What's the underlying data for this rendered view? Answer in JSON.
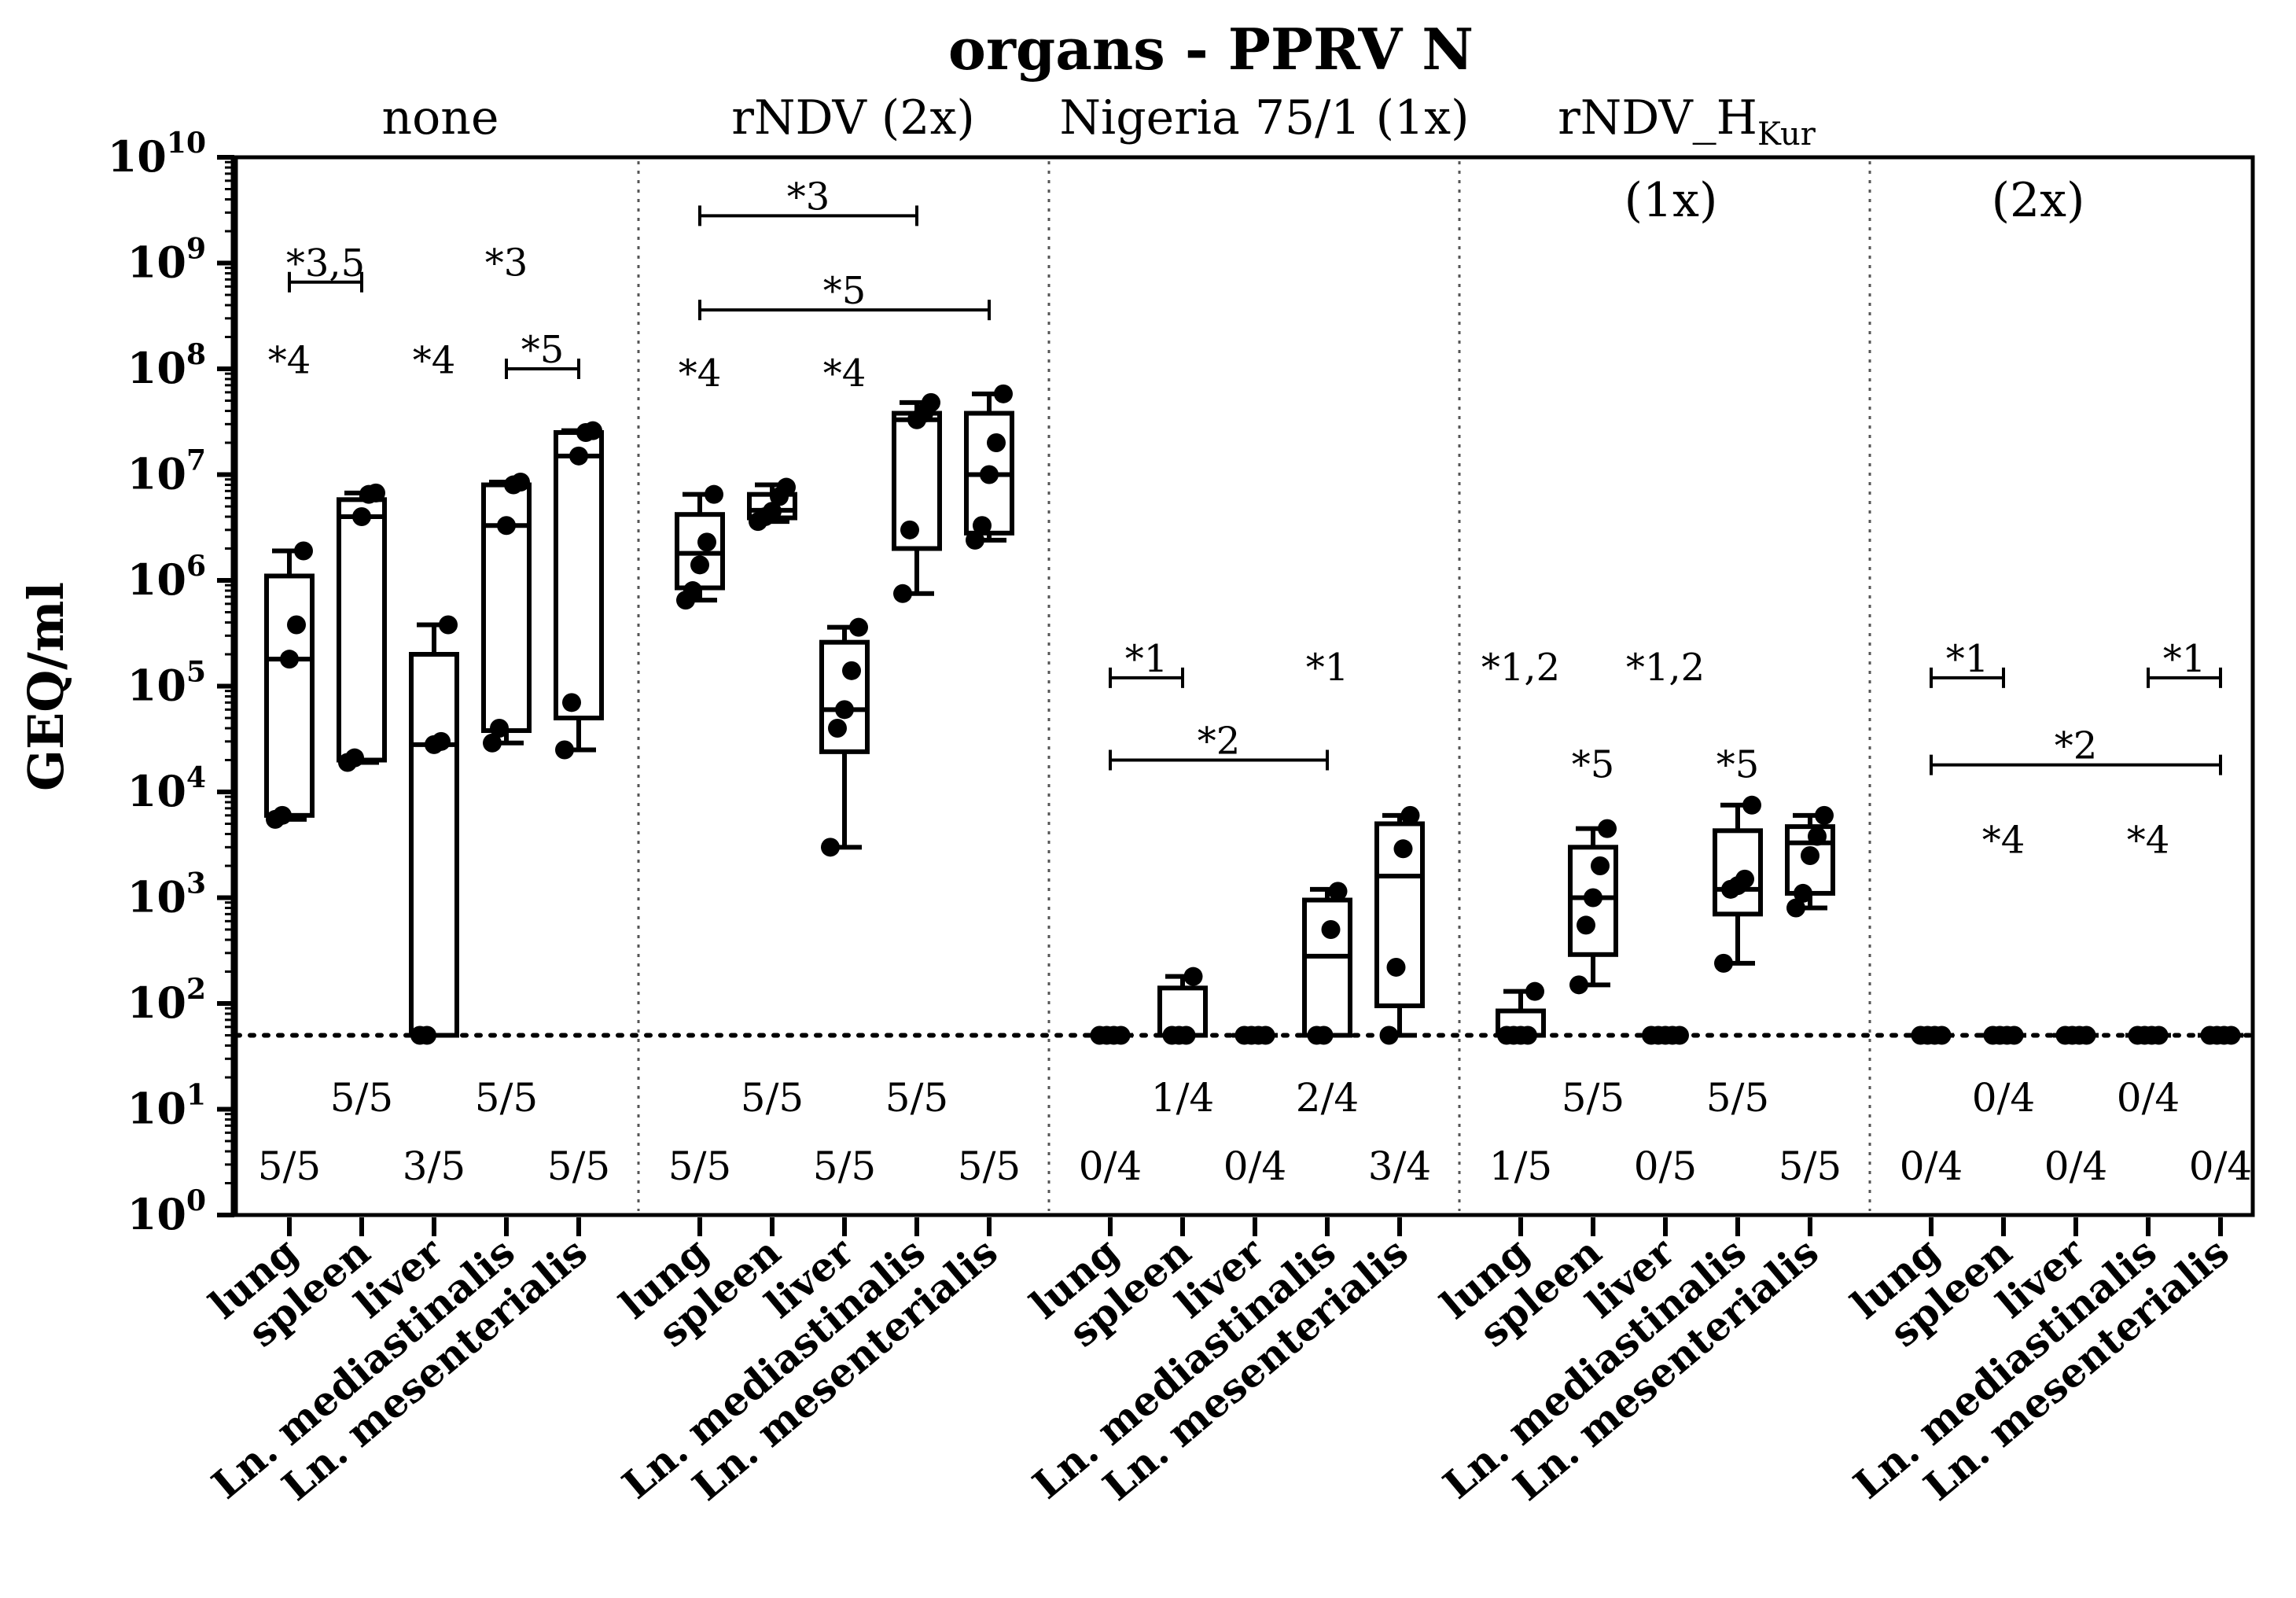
{
  "chart_data": {
    "type": "box",
    "title": "organs - PPRV N",
    "ylabel": "GEQ/ml",
    "yscale": "log10",
    "ylim": [
      1,
      10000000000
    ],
    "yticks": [
      {
        "exp": 0,
        "label_base": "10",
        "label_exp": "0"
      },
      {
        "exp": 1,
        "label_base": "10",
        "label_exp": "1"
      },
      {
        "exp": 2,
        "label_base": "10",
        "label_exp": "2"
      },
      {
        "exp": 3,
        "label_base": "10",
        "label_exp": "3"
      },
      {
        "exp": 4,
        "label_base": "10",
        "label_exp": "4"
      },
      {
        "exp": 5,
        "label_base": "10",
        "label_exp": "5"
      },
      {
        "exp": 6,
        "label_base": "10",
        "label_exp": "6"
      },
      {
        "exp": 7,
        "label_base": "10",
        "label_exp": "7"
      },
      {
        "exp": 8,
        "label_base": "10",
        "label_exp": "8"
      },
      {
        "exp": 9,
        "label_base": "10",
        "label_exp": "9"
      },
      {
        "exp": 10,
        "label_base": "10",
        "label_exp": "10"
      }
    ],
    "detection_limit": 50,
    "categories": [
      "lung",
      "spleen",
      "liver",
      "Ln. mediastinalis",
      "Ln. mesenterialis"
    ],
    "group_headers": [
      {
        "text": "none"
      },
      {
        "text": "rNDV (2x)"
      },
      {
        "text": "Nigeria 75/1 (1x)"
      },
      {
        "text_main": "rNDV_H",
        "text_sub": "Kur"
      },
      {
        "text": "(1x)"
      },
      {
        "text": "(2x)"
      }
    ],
    "groups": [
      {
        "name": "none",
        "boxes": [
          {
            "organ": "lung",
            "min": 5500,
            "q1": 6000,
            "median": 180000,
            "q3": 1100000,
            "max": 1900000,
            "points": [
              5500,
              6000,
              180000,
              380000,
              1900000
            ],
            "ratio": "5/5"
          },
          {
            "organ": "spleen",
            "min": 19000,
            "q1": 20000,
            "median": 4000000,
            "q3": 5800000,
            "max": 6700000,
            "points": [
              19000,
              21000,
              4000000,
              6500000,
              6700000
            ],
            "ratio": "5/5"
          },
          {
            "organ": "liver",
            "min": 50,
            "q1": 50,
            "median": 28000,
            "q3": 200000,
            "max": 380000,
            "points": [
              50,
              50,
              28000,
              30000,
              380000
            ],
            "ratio": "3/5"
          },
          {
            "organ": "Ln. mediastinalis",
            "min": 29000,
            "q1": 38000,
            "median": 3300000,
            "q3": 8000000,
            "max": 8500000,
            "points": [
              29000,
              40000,
              3300000,
              8000000,
              8500000
            ],
            "ratio": "5/5"
          },
          {
            "organ": "Ln. mesenterialis",
            "min": 25000,
            "q1": 50000,
            "median": 15000000,
            "q3": 25000000,
            "max": 26000000,
            "points": [
              25000,
              70000,
              15000000,
              25000000,
              26000000
            ],
            "ratio": "5/5"
          }
        ]
      },
      {
        "name": "rNDV (2x)",
        "boxes": [
          {
            "organ": "lung",
            "min": 650000,
            "q1": 850000,
            "median": 1800000,
            "q3": 4200000,
            "max": 6500000,
            "points": [
              650000,
              800000,
              1400000,
              2300000,
              6500000
            ],
            "ratio": "5/5"
          },
          {
            "organ": "spleen",
            "min": 3600000,
            "q1": 3900000,
            "median": 4600000,
            "q3": 6500000,
            "max": 8000000,
            "points": [
              3600000,
              4000000,
              4500000,
              6200000,
              7600000
            ],
            "ratio": "5/5"
          },
          {
            "organ": "liver",
            "min": 3000,
            "q1": 24000,
            "median": 60000,
            "q3": 260000,
            "max": 360000,
            "points": [
              3000,
              40000,
              60000,
              140000,
              360000
            ],
            "ratio": "5/5"
          },
          {
            "organ": "Ln. mediastinalis",
            "min": 750000,
            "q1": 2000000,
            "median": 33000000,
            "q3": 38000000,
            "max": 48000000,
            "points": [
              750000,
              3000000,
              33000000,
              38000000,
              48000000
            ],
            "ratio": "5/5"
          },
          {
            "organ": "Ln. mesenterialis",
            "min": 2400000,
            "q1": 2800000,
            "median": 10000000,
            "q3": 38000000,
            "max": 58000000,
            "points": [
              2400000,
              3300000,
              10000000,
              20000000,
              58000000
            ],
            "ratio": "5/5"
          }
        ]
      },
      {
        "name": "Nigeria 75/1 (1x)",
        "boxes": [
          {
            "organ": "lung",
            "min": 50,
            "q1": 50,
            "median": 50,
            "q3": 50,
            "max": 50,
            "points": [
              50,
              50,
              50,
              50
            ],
            "ratio": "0/4"
          },
          {
            "organ": "spleen",
            "min": 50,
            "q1": 50,
            "median": 50,
            "q3": 140,
            "max": 180,
            "points": [
              50,
              50,
              50,
              180
            ],
            "ratio": "1/4"
          },
          {
            "organ": "liver",
            "min": 50,
            "q1": 50,
            "median": 50,
            "q3": 50,
            "max": 50,
            "points": [
              50,
              50,
              50,
              50
            ],
            "ratio": "0/4"
          },
          {
            "organ": "Ln. mediastinalis",
            "min": 50,
            "q1": 50,
            "median": 280,
            "q3": 950,
            "max": 1200,
            "points": [
              50,
              50,
              500,
              1150
            ],
            "ratio": "2/4"
          },
          {
            "organ": "Ln. mesenterialis",
            "min": 50,
            "q1": 95,
            "median": 1600,
            "q3": 5000,
            "max": 6000,
            "points": [
              50,
              220,
              2900,
              6000
            ],
            "ratio": "3/4"
          }
        ]
      },
      {
        "name": "rNDV_HKur (1x)",
        "boxes": [
          {
            "organ": "lung",
            "min": 50,
            "q1": 50,
            "median": 50,
            "q3": 85,
            "max": 130,
            "points": [
              50,
              50,
              50,
              50,
              130
            ],
            "ratio": "1/5"
          },
          {
            "organ": "spleen",
            "min": 150,
            "q1": 290,
            "median": 1000,
            "q3": 3000,
            "max": 4500,
            "points": [
              150,
              550,
              1000,
              2000,
              4500
            ],
            "ratio": "5/5"
          },
          {
            "organ": "liver",
            "min": 50,
            "q1": 50,
            "median": 50,
            "q3": 50,
            "max": 50,
            "points": [
              50,
              50,
              50,
              50,
              50
            ],
            "ratio": "0/5"
          },
          {
            "organ": "Ln. mediastinalis",
            "min": 240,
            "q1": 700,
            "median": 1200,
            "q3": 4300,
            "max": 7500,
            "points": [
              240,
              1200,
              1300,
              1500,
              7500
            ],
            "ratio": "5/5"
          },
          {
            "organ": "Ln. mesenterialis",
            "min": 800,
            "q1": 1100,
            "median": 3300,
            "q3": 4700,
            "max": 6000,
            "points": [
              800,
              1100,
              2500,
              3800,
              6000
            ],
            "ratio": "5/5"
          }
        ]
      },
      {
        "name": "rNDV_HKur (2x)",
        "boxes": [
          {
            "organ": "lung",
            "min": 50,
            "q1": 50,
            "median": 50,
            "q3": 50,
            "max": 50,
            "points": [
              50,
              50,
              50,
              50
            ],
            "ratio": "0/4"
          },
          {
            "organ": "spleen",
            "min": 50,
            "q1": 50,
            "median": 50,
            "q3": 50,
            "max": 50,
            "points": [
              50,
              50,
              50,
              50
            ],
            "ratio": "0/4"
          },
          {
            "organ": "liver",
            "min": 50,
            "q1": 50,
            "median": 50,
            "q3": 50,
            "max": 50,
            "points": [
              50,
              50,
              50,
              50
            ],
            "ratio": "0/4"
          },
          {
            "organ": "Ln. mediastinalis",
            "min": 50,
            "q1": 50,
            "median": 50,
            "q3": 50,
            "max": 50,
            "points": [
              50,
              50,
              50,
              50
            ],
            "ratio": "0/4"
          },
          {
            "organ": "Ln. mesenterialis",
            "min": 50,
            "q1": 50,
            "median": 50,
            "q3": 50,
            "max": 50,
            "points": [
              50,
              50,
              50,
              50
            ],
            "ratio": "0/4"
          }
        ]
      }
    ],
    "annotations": [
      {
        "group": 0,
        "from": 0,
        "to": 1,
        "y": 660000000,
        "text": "*3,5"
      },
      {
        "group": 0,
        "at": 3,
        "y": 1000000000,
        "text": "*3"
      },
      {
        "group": 0,
        "at": 0,
        "y": 120000000,
        "text": "*4"
      },
      {
        "group": 0,
        "at": 2,
        "y": 120000000,
        "text": "*4"
      },
      {
        "group": 0,
        "from": 3,
        "to": 4,
        "y": 100000000,
        "text": "*5"
      },
      {
        "group": 1,
        "from": 0,
        "to": 3,
        "y": 2800000000,
        "text": "*3"
      },
      {
        "group": 1,
        "from": 0,
        "to": 4,
        "y": 360000000,
        "text": "*5"
      },
      {
        "group": 1,
        "at": 0,
        "y": 90000000,
        "text": "*4"
      },
      {
        "group": 1,
        "at": 2,
        "y": 90000000,
        "text": "*4"
      },
      {
        "group": 2,
        "from": 0,
        "to": 1,
        "y": 120000,
        "text": "*1"
      },
      {
        "group": 2,
        "at": 3,
        "y": 150000,
        "text": "*1"
      },
      {
        "group": 2,
        "from": 0,
        "to": 3,
        "y": 20000,
        "text": "*2"
      },
      {
        "group": 3,
        "at": 0,
        "y": 150000,
        "text": "*1,2"
      },
      {
        "group": 3,
        "at": 2,
        "y": 150000,
        "text": "*1,2"
      },
      {
        "group": 3,
        "at": 1,
        "y": 18000,
        "text": "*5"
      },
      {
        "group": 3,
        "at": 3,
        "y": 18000,
        "text": "*5"
      },
      {
        "group": 4,
        "from": 0,
        "to": 1,
        "y": 120000,
        "text": "*1"
      },
      {
        "group": 4,
        "from": 3,
        "to": 4,
        "y": 120000,
        "text": "*1"
      },
      {
        "group": 4,
        "from": 0,
        "to": 4,
        "y": 18000,
        "text": "*2"
      },
      {
        "group": 4,
        "at": 1,
        "y": 3500,
        "text": "*4"
      },
      {
        "group": 4,
        "at": 3,
        "y": 3500,
        "text": "*4"
      }
    ]
  }
}
